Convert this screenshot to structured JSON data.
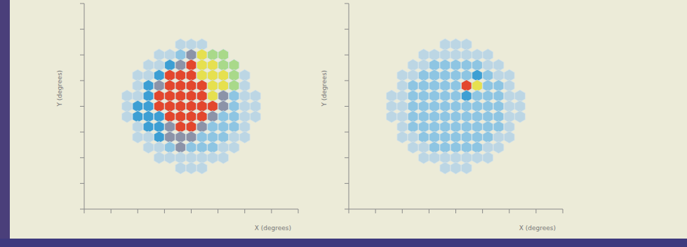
{
  "chart_data": [
    {
      "type": "heatmap",
      "x_label": "X (degrees)",
      "y_label": "Y (degrees)",
      "xlim": [
        -4,
        4
      ],
      "ylim": [
        -4,
        4
      ],
      "xticks": [
        -4,
        -3,
        -2,
        -1,
        0,
        1,
        2,
        3,
        4
      ],
      "yticks": [
        -4,
        -3,
        -2,
        -1,
        0,
        1,
        2,
        3,
        4
      ],
      "tick_labels": false,
      "zlim": [
        0,
        1
      ],
      "x": [
        -2.4,
        -2.0,
        -1.6,
        -1.2,
        -0.8,
        -0.4,
        0,
        0.4,
        0.8,
        1.2,
        1.6,
        2.0,
        2.4
      ],
      "y": [
        2.4,
        2.0,
        1.6,
        1.2,
        0.8,
        0.4,
        0,
        -0.4,
        -0.8,
        -1.2,
        -1.6,
        -2.0,
        -2.4
      ],
      "cells": [
        [
          null,
          null,
          null,
          null,
          null,
          0.1,
          0.1,
          0.1,
          null,
          null,
          null,
          null,
          null
        ],
        [
          null,
          null,
          null,
          0.1,
          0.1,
          0.2,
          0.5,
          0.85,
          1.0,
          1.0,
          null,
          null,
          null
        ],
        [
          null,
          null,
          0.1,
          0.1,
          0.35,
          0.5,
          0.7,
          0.85,
          0.85,
          1.0,
          1.0,
          null,
          null
        ],
        [
          null,
          0.1,
          0.1,
          0.35,
          0.7,
          0.7,
          0.7,
          0.85,
          0.85,
          0.85,
          1.0,
          0.1,
          null
        ],
        [
          null,
          0.1,
          0.35,
          0.5,
          0.7,
          0.7,
          0.7,
          0.7,
          0.85,
          0.85,
          1.0,
          0.1,
          null
        ],
        [
          0.1,
          0.1,
          0.35,
          0.7,
          0.7,
          0.7,
          0.7,
          0.7,
          0.85,
          0.5,
          0.2,
          0.1,
          0.1
        ],
        [
          0.1,
          0.35,
          0.35,
          0.7,
          0.7,
          0.7,
          0.7,
          0.7,
          0.7,
          0.5,
          0.2,
          0.1,
          0.1
        ],
        [
          0.1,
          0.35,
          0.35,
          0.35,
          0.7,
          0.7,
          0.7,
          0.7,
          0.5,
          0.2,
          0.2,
          0.1,
          0.1
        ],
        [
          null,
          0.1,
          0.35,
          0.35,
          0.5,
          0.7,
          0.7,
          0.5,
          0.2,
          0.2,
          0.2,
          0.1,
          null
        ],
        [
          null,
          0.1,
          0.1,
          0.35,
          0.5,
          0.5,
          0.5,
          0.2,
          0.2,
          0.2,
          0.1,
          0.1,
          null
        ],
        [
          null,
          null,
          0.1,
          0.1,
          0.2,
          0.5,
          0.2,
          0.2,
          0.2,
          0.1,
          0.1,
          null,
          null
        ],
        [
          null,
          null,
          null,
          0.1,
          0.1,
          0.1,
          0.1,
          0.1,
          0.1,
          0.1,
          null,
          null,
          null
        ],
        [
          null,
          null,
          null,
          null,
          null,
          0.1,
          0.1,
          0.1,
          null,
          null,
          null,
          null,
          null
        ]
      ]
    },
    {
      "type": "heatmap",
      "x_label": "X (degrees)",
      "y_label": "Y (degrees)",
      "xlim": [
        -4,
        4
      ],
      "ylim": [
        -4,
        4
      ],
      "xticks": [
        -4,
        -3,
        -2,
        -1,
        0,
        1,
        2,
        3,
        4
      ],
      "yticks": [
        -4,
        -3,
        -2,
        -1,
        0,
        1,
        2,
        3,
        4
      ],
      "tick_labels": false,
      "zlim": [
        0,
        1
      ],
      "x": [
        -2.4,
        -2.0,
        -1.6,
        -1.2,
        -0.8,
        -0.4,
        0,
        0.4,
        0.8,
        1.2,
        1.6,
        2.0,
        2.4
      ],
      "y": [
        2.4,
        2.0,
        1.6,
        1.2,
        0.8,
        0.4,
        0,
        -0.4,
        -0.8,
        -1.2,
        -1.6,
        -2.0,
        -2.4
      ],
      "cells": [
        [
          null,
          null,
          null,
          null,
          null,
          0.1,
          0.1,
          0.1,
          null,
          null,
          null,
          null,
          null
        ],
        [
          null,
          null,
          null,
          0.1,
          0.1,
          0.1,
          0.1,
          0.1,
          0.1,
          0.1,
          null,
          null,
          null
        ],
        [
          null,
          null,
          0.1,
          0.1,
          0.2,
          0.2,
          0.2,
          0.2,
          0.2,
          0.1,
          0.1,
          null,
          null
        ],
        [
          null,
          0.1,
          0.1,
          0.2,
          0.2,
          0.2,
          0.2,
          0.2,
          0.35,
          0.2,
          0.1,
          0.1,
          null
        ],
        [
          null,
          0.1,
          0.2,
          0.2,
          0.2,
          0.2,
          0.2,
          0.7,
          0.85,
          0.2,
          0.2,
          0.1,
          null
        ],
        [
          0.1,
          0.1,
          0.2,
          0.2,
          0.2,
          0.2,
          0.2,
          0.35,
          0.2,
          0.2,
          0.2,
          0.1,
          0.1
        ],
        [
          0.1,
          0.1,
          0.2,
          0.2,
          0.2,
          0.2,
          0.2,
          0.2,
          0.2,
          0.2,
          0.2,
          0.1,
          0.1
        ],
        [
          0.1,
          0.1,
          0.2,
          0.2,
          0.2,
          0.2,
          0.2,
          0.2,
          0.2,
          0.2,
          0.2,
          0.1,
          0.1
        ],
        [
          null,
          0.1,
          0.2,
          0.2,
          0.2,
          0.2,
          0.2,
          0.2,
          0.2,
          0.2,
          0.2,
          0.1,
          null
        ],
        [
          null,
          0.1,
          0.1,
          0.2,
          0.2,
          0.2,
          0.2,
          0.2,
          0.2,
          0.2,
          0.1,
          0.1,
          null
        ],
        [
          null,
          null,
          0.1,
          0.1,
          0.2,
          0.2,
          0.2,
          0.2,
          0.2,
          0.1,
          0.1,
          null,
          null
        ],
        [
          null,
          null,
          null,
          0.1,
          0.1,
          0.1,
          0.1,
          0.1,
          0.1,
          0.1,
          null,
          null,
          null
        ],
        [
          null,
          null,
          null,
          null,
          null,
          0.1,
          0.1,
          0.1,
          null,
          null,
          null,
          null,
          null
        ]
      ]
    }
  ]
}
